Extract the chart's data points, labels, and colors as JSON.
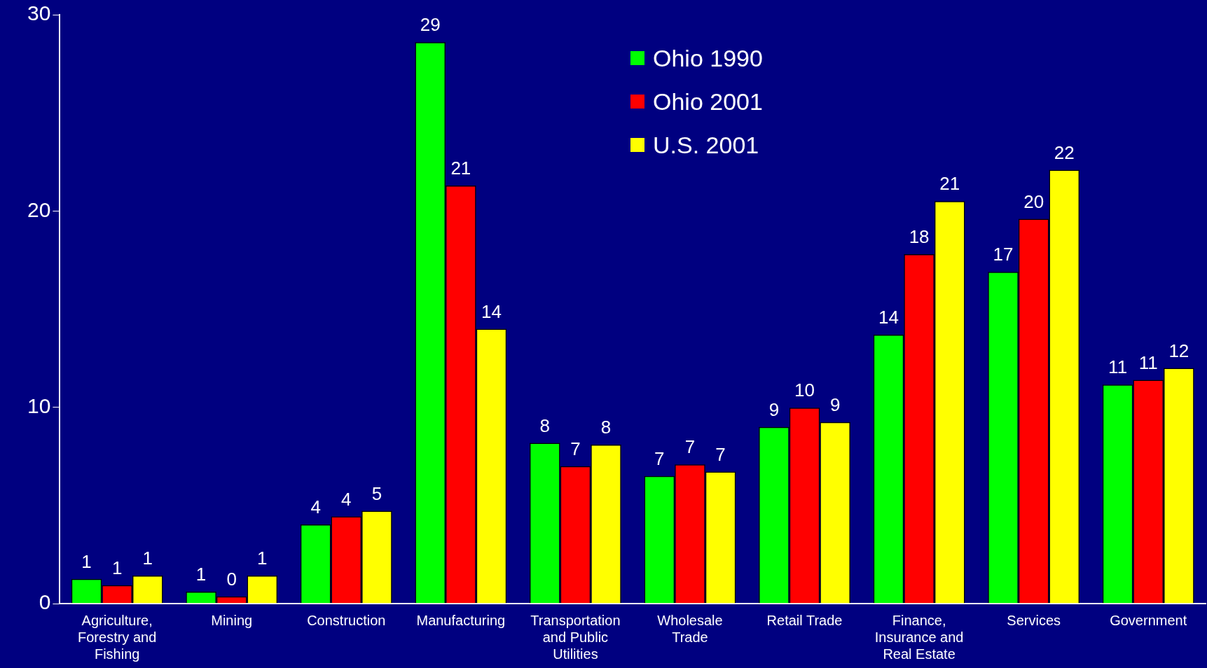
{
  "chart_data": {
    "type": "bar",
    "categories": [
      "Agriculture, Forestry and Fishing",
      "Mining",
      "Construction",
      "Manufacturing",
      "Transportation and Public Utilities",
      "Wholesale Trade",
      "Retail Trade",
      "Finance, Insurance and Real Estate",
      "Services",
      "Government"
    ],
    "series": [
      {
        "name": "Ohio 1990",
        "color": "#00ff00",
        "values": [
          1.26,
          0.61,
          4.03,
          28.6,
          8.19,
          6.5,
          9.0,
          13.7,
          16.9,
          11.16
        ],
        "value_labels": [
          "1",
          "1",
          "4",
          "29",
          "8",
          "7",
          "9",
          "14",
          "17",
          "11"
        ]
      },
      {
        "name": "Ohio 2001",
        "color": "#ff0000",
        "values": [
          0.94,
          0.37,
          4.44,
          21.3,
          7.0,
          7.09,
          9.98,
          17.8,
          19.6,
          11.4
        ],
        "value_labels": [
          "1",
          "0",
          "4",
          "21",
          "7",
          "7",
          "10",
          "18",
          "20",
          "11"
        ]
      },
      {
        "name": "U.S. 2001",
        "color": "#ffff00",
        "values": [
          1.43,
          1.43,
          4.73,
          14.0,
          8.1,
          6.72,
          9.25,
          20.5,
          22.1,
          12.0
        ],
        "value_labels": [
          "1",
          "1",
          "5",
          "14",
          "8",
          "7",
          "9",
          "21",
          "22",
          "12"
        ]
      }
    ],
    "ylim": [
      0,
      30
    ],
    "yticks": [
      0,
      10,
      20,
      30
    ],
    "grid": false,
    "legend": "top"
  }
}
